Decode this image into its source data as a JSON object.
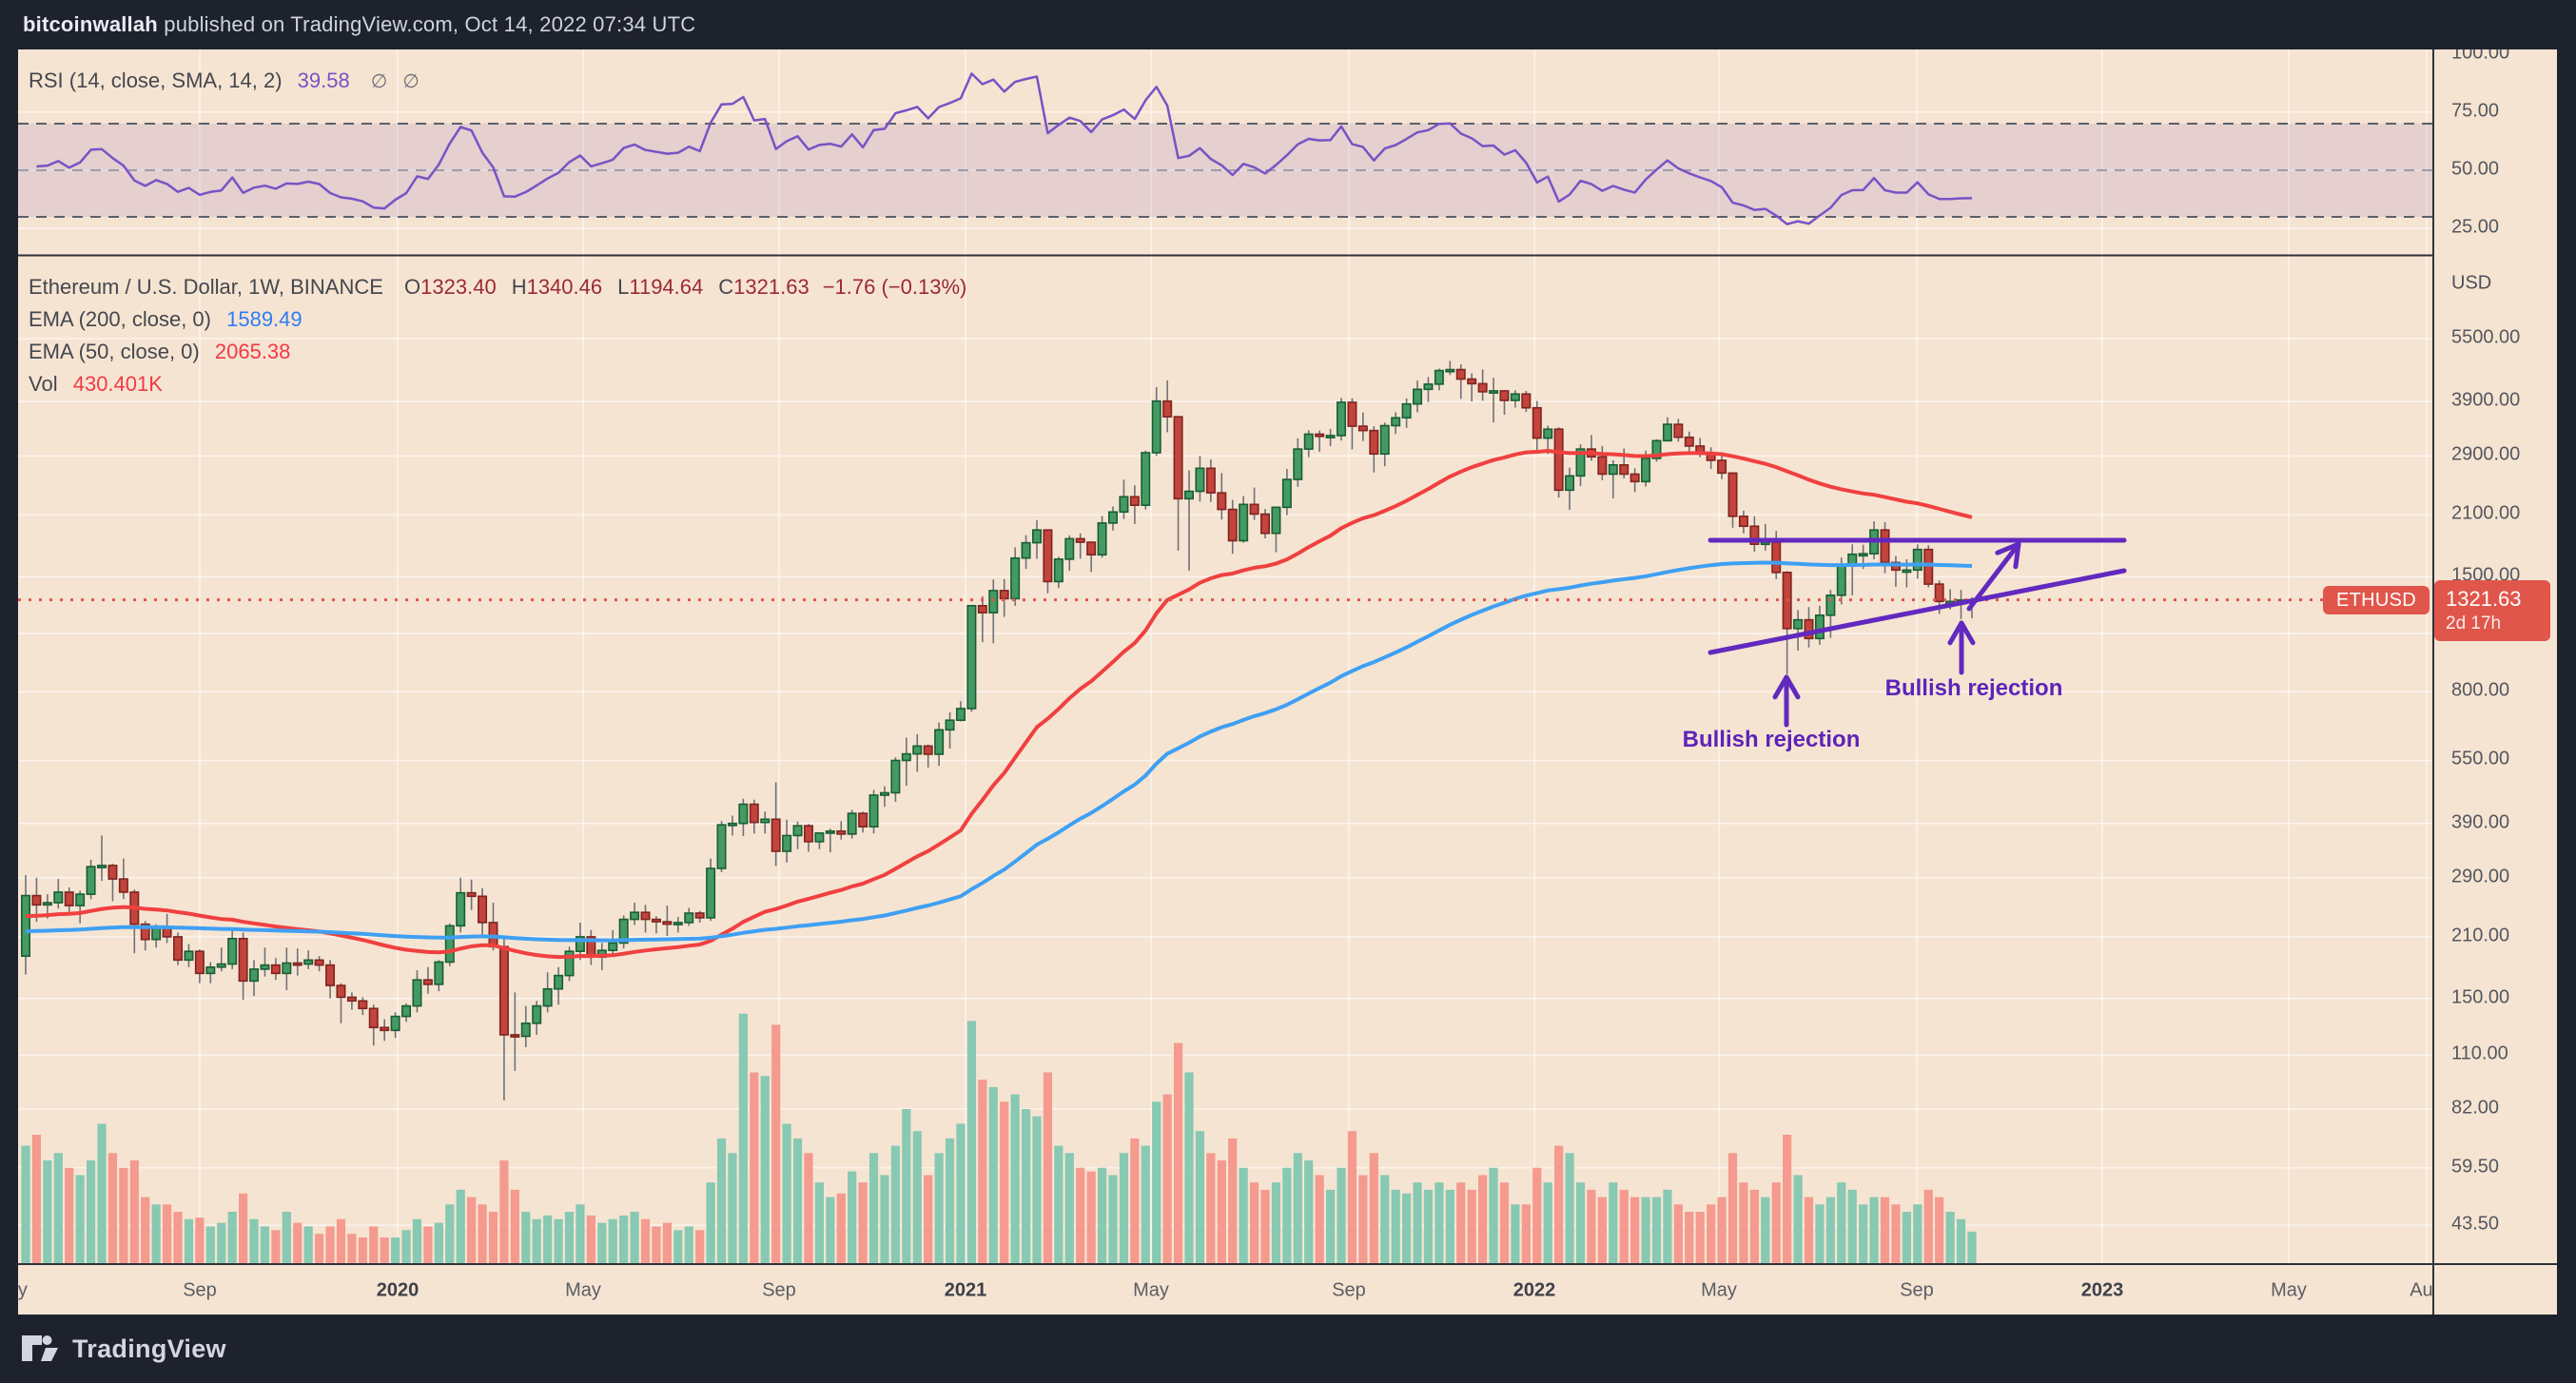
{
  "header": {
    "user": "bitcoinwallah",
    "rest": " published on TradingView.com, Oct 14, 2022 07:34 UTC"
  },
  "rsi_pane": {
    "legend_label": "RSI (14, close, SMA, 14, 2)",
    "legend_value": "39.58",
    "hidden_icons": [
      "∅",
      "∅"
    ],
    "scale_values": [
      100,
      75,
      50,
      25
    ],
    "scale_texts": [
      "100.00",
      "75.00",
      "50.00",
      "25.00"
    ]
  },
  "legend": {
    "symbol_line": "Ethereum / U.S. Dollar, 1W, BINANCE",
    "ohlc": [
      {
        "k": "O",
        "v": "1323.40"
      },
      {
        "k": "H",
        "v": "1340.46"
      },
      {
        "k": "L",
        "v": "1194.64"
      },
      {
        "k": "C",
        "v": "1321.63"
      }
    ],
    "change": "−1.76 (−0.13%)",
    "ema200_label": "EMA (200, close, 0)",
    "ema200_value": "1589.49",
    "ema50_label": "EMA (50, close, 0)",
    "ema50_value": "2065.38",
    "vol_label": "Vol",
    "vol_value": "430.401K"
  },
  "price_scale": {
    "currency": "USD",
    "values": [
      5500,
      3900,
      2900,
      2100,
      1500,
      800,
      550,
      390,
      290,
      210,
      150,
      110,
      82,
      59.5,
      43.5
    ],
    "texts": [
      "5500.00",
      "3900.00",
      "2900.00",
      "2100.00",
      "1500.00",
      "800.00",
      "550.00",
      "390.00",
      "290.00",
      "210.00",
      "150.00",
      "110.00",
      "82.00",
      "59.50",
      "43.50"
    ]
  },
  "price_tag": {
    "symbol": "ETHUSD",
    "price": "1321.63",
    "countdown": "2d 17h"
  },
  "time_axis": {
    "labels": [
      {
        "text": "May",
        "x": -9,
        "bold": false
      },
      {
        "text": "Sep",
        "x": 191,
        "bold": false
      },
      {
        "text": "2020",
        "x": 399,
        "bold": true
      },
      {
        "text": "May",
        "x": 594,
        "bold": false
      },
      {
        "text": "Sep",
        "x": 800,
        "bold": false
      },
      {
        "text": "2021",
        "x": 996,
        "bold": true
      },
      {
        "text": "May",
        "x": 1191,
        "bold": false
      },
      {
        "text": "Sep",
        "x": 1399,
        "bold": false
      },
      {
        "text": "2022",
        "x": 1594,
        "bold": true
      },
      {
        "text": "May",
        "x": 1788,
        "bold": false
      },
      {
        "text": "Sep",
        "x": 1996,
        "bold": false
      },
      {
        "text": "2023",
        "x": 2191,
        "bold": true
      },
      {
        "text": "May",
        "x": 2387,
        "bold": false
      },
      {
        "text": "Aug",
        "x": 2532,
        "bold": false
      }
    ]
  },
  "footer": {
    "brand": "TradingView"
  },
  "colors": {
    "frame": "#1e222d",
    "pane": "#f6e4d2",
    "grid": "rgba(255,255,255,0.6)",
    "border": "#30333c",
    "candle_up": "#459a63",
    "candle_up_border": "#185e34",
    "candle_down": "#c2443c",
    "candle_down_border": "#7f2420",
    "wick": "#6f7277",
    "vol_up": "#87c9b2",
    "vol_down": "#f49a8e",
    "ema_fast": "#f0403f",
    "ema_slow": "#3fa0f3",
    "rsi_line": "#7a52c5",
    "rsi_band": "rgba(126,87,194,0.14)",
    "level_dash": "#5c5f6a",
    "level_mid": "#9a9eac",
    "accent_red": "#e0564b",
    "maroon": "#9b2a33",
    "blue_value": "#2e7df2",
    "red_value": "#f13a44",
    "purple": "#6229bf"
  },
  "chart_data": {
    "type": "candlestick",
    "title": "Ethereum / U.S. Dollar, 1W, BINANCE",
    "interval": "1W",
    "log_scale": true,
    "ylim": [
      35.2,
      8622
    ],
    "current_price": 1321.63,
    "price_gridlines": [
      5500,
      3900,
      2900,
      2100,
      1500,
      1100,
      800,
      550,
      390,
      290,
      210,
      150,
      110,
      82,
      59.5,
      43.5
    ],
    "first_open": 189,
    "candles_format": [
      "high",
      "low",
      "close",
      "volume_K"
    ],
    "candles": [
      [
        294,
        171,
        263,
        1600
      ],
      [
        290,
        228,
        250,
        1750
      ],
      [
        265,
        232,
        253,
        1400
      ],
      [
        288,
        245,
        268,
        1500
      ],
      [
        275,
        240,
        249,
        1300
      ],
      [
        270,
        226,
        265,
        1200
      ],
      [
        320,
        258,
        308,
        1400
      ],
      [
        365,
        285,
        310,
        1900
      ],
      [
        313,
        255,
        288,
        1500
      ],
      [
        322,
        258,
        268,
        1300
      ],
      [
        272,
        192,
        225,
        1400
      ],
      [
        229,
        195,
        207,
        900
      ],
      [
        225,
        198,
        222,
        800
      ],
      [
        238,
        203,
        210,
        800
      ],
      [
        215,
        180,
        185,
        700
      ],
      [
        202,
        178,
        194,
        600
      ],
      [
        196,
        163,
        172,
        620
      ],
      [
        183,
        163,
        178,
        500
      ],
      [
        198,
        174,
        181,
        550
      ],
      [
        220,
        176,
        208,
        700
      ],
      [
        215,
        149,
        165,
        950
      ],
      [
        185,
        152,
        176,
        600
      ],
      [
        198,
        169,
        180,
        500
      ],
      [
        187,
        166,
        172,
        450
      ],
      [
        198,
        157,
        182,
        700
      ],
      [
        197,
        170,
        181,
        550
      ],
      [
        195,
        176,
        185,
        500
      ],
      [
        189,
        174,
        180,
        400
      ],
      [
        185,
        150,
        161,
        500
      ],
      [
        163,
        131,
        151,
        600
      ],
      [
        155,
        141,
        148,
        400
      ],
      [
        151,
        137,
        142,
        350
      ],
      [
        145,
        116,
        128,
        500
      ],
      [
        134,
        119,
        126,
        350
      ],
      [
        139,
        121,
        136,
        350
      ],
      [
        146,
        132,
        144,
        450
      ],
      [
        175,
        139,
        166,
        600
      ],
      [
        178,
        154,
        162,
        500
      ],
      [
        185,
        156,
        183,
        550
      ],
      [
        226,
        179,
        223,
        800
      ],
      [
        290,
        215,
        267,
        1000
      ],
      [
        287,
        243,
        262,
        900
      ],
      [
        274,
        209,
        227,
        800
      ],
      [
        253,
        195,
        199,
        700
      ],
      [
        208,
        86,
        123,
        1400
      ],
      [
        155,
        101,
        122,
        1000
      ],
      [
        144,
        115,
        131,
        700
      ],
      [
        148,
        123,
        144,
        600
      ],
      [
        173,
        139,
        158,
        650
      ],
      [
        178,
        145,
        170,
        600
      ],
      [
        199,
        165,
        194,
        700
      ],
      [
        227,
        185,
        210,
        800
      ],
      [
        218,
        180,
        188,
        650
      ],
      [
        203,
        175,
        195,
        550
      ],
      [
        218,
        189,
        203,
        600
      ],
      [
        236,
        197,
        231,
        650
      ],
      [
        253,
        224,
        240,
        700
      ],
      [
        250,
        215,
        231,
        600
      ],
      [
        235,
        214,
        228,
        500
      ],
      [
        249,
        211,
        225,
        550
      ],
      [
        234,
        215,
        227,
        450
      ],
      [
        246,
        223,
        239,
        500
      ],
      [
        242,
        227,
        233,
        450
      ],
      [
        322,
        229,
        305,
        1100
      ],
      [
        395,
        299,
        387,
        1700
      ],
      [
        407,
        365,
        390,
        1500
      ],
      [
        446,
        364,
        433,
        3400
      ],
      [
        444,
        369,
        392,
        2600
      ],
      [
        416,
        369,
        399,
        2550
      ],
      [
        488,
        309,
        335,
        3250
      ],
      [
        398,
        315,
        365,
        1900
      ],
      [
        394,
        339,
        385,
        1700
      ],
      [
        389,
        334,
        353,
        1500
      ],
      [
        371,
        339,
        370,
        1100
      ],
      [
        379,
        333,
        374,
        900
      ],
      [
        395,
        357,
        368,
        950
      ],
      [
        420,
        359,
        412,
        1250
      ],
      [
        416,
        371,
        383,
        1100
      ],
      [
        468,
        369,
        455,
        1500
      ],
      [
        478,
        427,
        461,
        1200
      ],
      [
        560,
        439,
        550,
        1600
      ],
      [
        623,
        479,
        570,
        2100
      ],
      [
        635,
        517,
        595,
        1800
      ],
      [
        600,
        529,
        569,
        1200
      ],
      [
        676,
        534,
        650,
        1500
      ],
      [
        715,
        587,
        685,
        1700
      ],
      [
        760,
        681,
        730,
        1900
      ],
      [
        1286,
        717,
        1280,
        3300
      ],
      [
        1348,
        1049,
        1232,
        2500
      ],
      [
        1477,
        1042,
        1390,
        2400
      ],
      [
        1480,
        1204,
        1330,
        2200
      ],
      [
        1760,
        1279,
        1660,
        2300
      ],
      [
        1880,
        1564,
        1805,
        2100
      ],
      [
        2042,
        1654,
        1935,
        2000
      ],
      [
        1936,
        1369,
        1460,
        2600
      ],
      [
        1673,
        1409,
        1650,
        1600
      ],
      [
        1880,
        1549,
        1845,
        1500
      ],
      [
        1900,
        1654,
        1810,
        1300
      ],
      [
        1780,
        1539,
        1690,
        1250
      ],
      [
        2090,
        1664,
        2010,
        1300
      ],
      [
        2200,
        1929,
        2135,
        1200
      ],
      [
        2548,
        2054,
        2320,
        1500
      ],
      [
        2470,
        1999,
        2215,
        1700
      ],
      [
        2985,
        2164,
        2950,
        1600
      ],
      [
        4220,
        2899,
        3910,
        2200
      ],
      [
        4380,
        3299,
        3590,
        2300
      ],
      [
        3600,
        1728,
        2295,
        3000
      ],
      [
        2680,
        1549,
        2390,
        2600
      ],
      [
        2900,
        2259,
        2710,
        1800
      ],
      [
        2845,
        2254,
        2370,
        1500
      ],
      [
        2640,
        2049,
        2165,
        1400
      ],
      [
        2280,
        1699,
        1825,
        1700
      ],
      [
        2330,
        1804,
        2225,
        1300
      ],
      [
        2440,
        2044,
        2110,
        1100
      ],
      [
        2170,
        1849,
        1900,
        1000
      ],
      [
        2200,
        1714,
        2190,
        1100
      ],
      [
        2700,
        2099,
        2550,
        1300
      ],
      [
        3190,
        2449,
        3010,
        1500
      ],
      [
        3335,
        2879,
        3265,
        1400
      ],
      [
        3330,
        2964,
        3225,
        1200
      ],
      [
        3360,
        3059,
        3240,
        1000
      ],
      [
        3980,
        3154,
        3885,
        1300
      ],
      [
        3970,
        3004,
        3410,
        1800
      ],
      [
        3675,
        3144,
        3330,
        1200
      ],
      [
        3410,
        2649,
        2930,
        1500
      ],
      [
        3480,
        2739,
        3420,
        1200
      ],
      [
        3680,
        3269,
        3570,
        1000
      ],
      [
        3970,
        3379,
        3850,
        950
      ],
      [
        4376,
        3679,
        4170,
        1100
      ],
      [
        4460,
        3894,
        4290,
        1000
      ],
      [
        4670,
        4149,
        4620,
        1100
      ],
      [
        4868,
        4509,
        4645,
        1000
      ],
      [
        4780,
        3959,
        4410,
        1100
      ],
      [
        4550,
        3904,
        4300,
        1000
      ],
      [
        4648,
        3917,
        4115,
        1200
      ],
      [
        4440,
        3479,
        4135,
        1300
      ],
      [
        4130,
        3629,
        3925,
        1100
      ],
      [
        4150,
        3774,
        4065,
        800
      ],
      [
        4135,
        3684,
        3770,
        800
      ],
      [
        3910,
        2969,
        3195,
        1300
      ],
      [
        3420,
        2929,
        3355,
        1100
      ],
      [
        3390,
        2309,
        2405,
        1600
      ],
      [
        2720,
        2159,
        2600,
        1500
      ],
      [
        3090,
        2459,
        3010,
        1100
      ],
      [
        3250,
        2824,
        2885,
        1000
      ],
      [
        3060,
        2539,
        2625,
        900
      ],
      [
        2830,
        2299,
        2760,
        1100
      ],
      [
        3020,
        2564,
        2625,
        1000
      ],
      [
        2710,
        2379,
        2520,
        900
      ],
      [
        2985,
        2454,
        2860,
        900
      ],
      [
        3175,
        2809,
        3150,
        900
      ],
      [
        3580,
        3139,
        3445,
        1000
      ],
      [
        3550,
        3134,
        3210,
        800
      ],
      [
        3310,
        2949,
        3060,
        700
      ],
      [
        3200,
        2879,
        2940,
        700
      ],
      [
        3040,
        2699,
        2830,
        800
      ],
      [
        2950,
        2554,
        2640,
        900
      ],
      [
        2650,
        1959,
        2085,
        1500
      ],
      [
        2150,
        1899,
        1975,
        1100
      ],
      [
        2085,
        1719,
        1790,
        1000
      ],
      [
        2000,
        1729,
        1810,
        900
      ],
      [
        1925,
        1479,
        1535,
        1100
      ],
      [
        1545,
        880,
        1130,
        1750
      ],
      [
        1250,
        1002,
        1185,
        1200
      ],
      [
        1270,
        1019,
        1070,
        900
      ],
      [
        1280,
        1034,
        1215,
        800
      ],
      [
        1395,
        1074,
        1355,
        900
      ],
      [
        1665,
        1289,
        1600,
        1100
      ],
      [
        1790,
        1354,
        1695,
        1000
      ],
      [
        1785,
        1564,
        1700,
        800
      ],
      [
        2030,
        1649,
        1935,
        900
      ],
      [
        2020,
        1529,
        1620,
        900
      ],
      [
        1680,
        1419,
        1555,
        800
      ],
      [
        1650,
        1414,
        1555,
        700
      ],
      [
        1790,
        1484,
        1740,
        800
      ],
      [
        1780,
        1414,
        1440,
        1000
      ],
      [
        1470,
        1224,
        1310,
        900
      ],
      [
        1400,
        1254,
        1310,
        700
      ],
      [
        1395,
        1190,
        1320,
        600
      ],
      [
        1340.46,
        1194.64,
        1321.63,
        430.401
      ]
    ],
    "volume_scale_max": 3500,
    "rsi": {
      "period": 14,
      "levels": [
        70,
        50,
        30
      ],
      "band": [
        30,
        70
      ],
      "scale_labels": [
        100,
        75,
        50,
        25
      ],
      "last_value": 39.58
    },
    "ema": [
      {
        "period": 200,
        "seed": 216,
        "last_value": 1589.49
      },
      {
        "period": 50,
        "seed": 234,
        "last_value": 2065.38
      }
    ],
    "drawings": {
      "resistance_line": {
        "x1": 1779,
        "y1": 516,
        "x2": 2214,
        "y2": 516
      },
      "trend_line": {
        "x1": 1779,
        "y1": 634,
        "x2": 2214,
        "y2": 548
      },
      "diag_arrow": {
        "x1": 2051,
        "y1": 588,
        "x2": 2103,
        "y2": 520
      },
      "up_arrow_1": {
        "x1": 1859,
        "y1": 710,
        "x2": 1859,
        "y2": 660
      },
      "up_arrow_2": {
        "x1": 2043,
        "y1": 655,
        "x2": 2043,
        "y2": 603
      }
    },
    "annotation_labels": [
      {
        "text": "Bullish rejection",
        "x": 1862,
        "y": 778
      },
      {
        "text": "Bullish rejection",
        "x": 2075,
        "y": 724
      }
    ]
  }
}
